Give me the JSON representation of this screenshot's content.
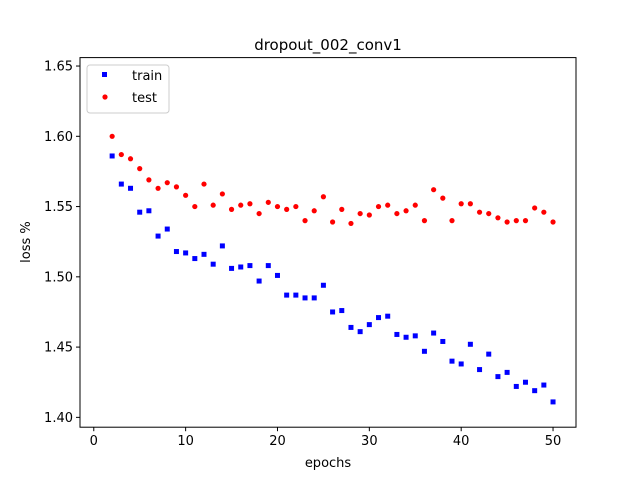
{
  "chart_data": {
    "type": "scatter",
    "title": "dropout_002_conv1",
    "xlabel": "epochs",
    "ylabel": "loss %",
    "xlim": [
      -1.5,
      52.5
    ],
    "ylim": [
      1.393,
      1.656
    ],
    "xticks": [
      0,
      10,
      20,
      30,
      40,
      50
    ],
    "xtick_labels": [
      "0",
      "10",
      "20",
      "30",
      "40",
      "50"
    ],
    "yticks": [
      1.4,
      1.45,
      1.5,
      1.55,
      1.6,
      1.65
    ],
    "ytick_labels": [
      "1.40",
      "1.45",
      "1.50",
      "1.55",
      "1.60",
      "1.65"
    ],
    "grid": false,
    "legend_position": "top-left",
    "series": [
      {
        "name": "train",
        "marker": "square",
        "color": "#0000ff",
        "x": [
          2,
          3,
          4,
          5,
          6,
          7,
          8,
          9,
          10,
          11,
          12,
          13,
          14,
          15,
          16,
          17,
          18,
          19,
          20,
          21,
          22,
          23,
          24,
          25,
          26,
          27,
          28,
          29,
          30,
          31,
          32,
          33,
          34,
          35,
          36,
          37,
          38,
          39,
          40,
          41,
          42,
          43,
          44,
          45,
          46,
          47,
          48,
          49,
          50
        ],
        "y": [
          1.586,
          1.566,
          1.563,
          1.546,
          1.547,
          1.529,
          1.534,
          1.518,
          1.517,
          1.513,
          1.516,
          1.509,
          1.522,
          1.506,
          1.507,
          1.508,
          1.497,
          1.508,
          1.501,
          1.487,
          1.487,
          1.485,
          1.485,
          1.494,
          1.475,
          1.476,
          1.464,
          1.461,
          1.466,
          1.471,
          1.472,
          1.459,
          1.457,
          1.458,
          1.447,
          1.46,
          1.454,
          1.44,
          1.438,
          1.452,
          1.434,
          1.445,
          1.429,
          1.432,
          1.422,
          1.425,
          1.419,
          1.423,
          1.411
        ]
      },
      {
        "name": "test",
        "marker": "circle",
        "color": "#ff0000",
        "x": [
          2,
          3,
          4,
          5,
          6,
          7,
          8,
          9,
          10,
          11,
          12,
          13,
          14,
          15,
          16,
          17,
          18,
          19,
          20,
          21,
          22,
          23,
          24,
          25,
          26,
          27,
          28,
          29,
          30,
          31,
          32,
          33,
          34,
          35,
          36,
          37,
          38,
          39,
          40,
          41,
          42,
          43,
          44,
          45,
          46,
          47,
          48,
          49,
          50
        ],
        "y": [
          1.6,
          1.587,
          1.584,
          1.577,
          1.569,
          1.563,
          1.567,
          1.564,
          1.558,
          1.55,
          1.566,
          1.551,
          1.559,
          1.548,
          1.551,
          1.552,
          1.545,
          1.553,
          1.55,
          1.548,
          1.55,
          1.54,
          1.547,
          1.557,
          1.539,
          1.548,
          1.538,
          1.545,
          1.544,
          1.55,
          1.551,
          1.545,
          1.547,
          1.551,
          1.54,
          1.562,
          1.556,
          1.54,
          1.552,
          1.552,
          1.546,
          1.545,
          1.542,
          1.539,
          1.54,
          1.54,
          1.549,
          1.546,
          1.539
        ]
      }
    ]
  }
}
